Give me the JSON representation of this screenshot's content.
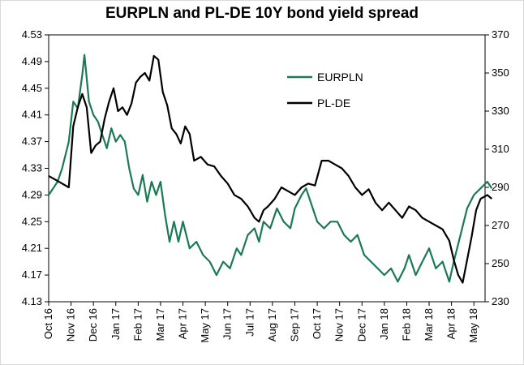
{
  "chart_data": {
    "type": "line",
    "title": "EURPLN and PL-DE 10Y bond yield spread",
    "x_categories": [
      "Oct 16",
      "Nov 16",
      "Dec 16",
      "Jan 17",
      "Feb 17",
      "Mar 17",
      "Apr 17",
      "May 17",
      "Jun 17",
      "Jul 17",
      "Aug 17",
      "Sep 17",
      "Oct 17",
      "Nov 17",
      "Dec 17",
      "Jan 18",
      "Feb 18",
      "Mar 18",
      "Apr 18",
      "May 18"
    ],
    "y_left": {
      "min": 4.13,
      "max": 4.53,
      "ticks": [
        "4.13",
        "4.17",
        "4.21",
        "4.25",
        "4.29",
        "4.33",
        "4.37",
        "4.41",
        "4.45",
        "4.49",
        "4.53"
      ]
    },
    "y_right": {
      "min": 230,
      "max": 370,
      "ticks": [
        "230",
        "250",
        "270",
        "290",
        "310",
        "330",
        "350",
        "370"
      ]
    },
    "legend": {
      "position": "upper-middle"
    },
    "series": [
      {
        "name": "EURPLN",
        "axis": "left",
        "color": "#1a7a55",
        "points": [
          [
            "Oct 16",
            4.29
          ],
          [
            0.4,
            4.31
          ],
          [
            0.6,
            4.33
          ],
          [
            0.9,
            4.37
          ],
          [
            1.0,
            4.4
          ],
          [
            1.1,
            4.43
          ],
          [
            1.3,
            4.42
          ],
          [
            1.5,
            4.47
          ],
          [
            1.6,
            4.5
          ],
          [
            1.8,
            4.43
          ],
          [
            2.0,
            4.41
          ],
          [
            2.2,
            4.4
          ],
          [
            2.4,
            4.38
          ],
          [
            2.6,
            4.36
          ],
          [
            2.8,
            4.39
          ],
          [
            3.0,
            4.37
          ],
          [
            3.2,
            4.38
          ],
          [
            3.4,
            4.37
          ],
          [
            3.6,
            4.33
          ],
          [
            3.8,
            4.3
          ],
          [
            4.0,
            4.29
          ],
          [
            4.2,
            4.32
          ],
          [
            4.4,
            4.28
          ],
          [
            4.6,
            4.31
          ],
          [
            4.8,
            4.29
          ],
          [
            5.0,
            4.31
          ],
          [
            5.2,
            4.26
          ],
          [
            5.4,
            4.22
          ],
          [
            5.6,
            4.25
          ],
          [
            5.8,
            4.22
          ],
          [
            6.0,
            4.25
          ],
          [
            6.3,
            4.21
          ],
          [
            6.6,
            4.22
          ],
          [
            6.9,
            4.2
          ],
          [
            7.2,
            4.19
          ],
          [
            7.5,
            4.17
          ],
          [
            7.8,
            4.19
          ],
          [
            8.1,
            4.18
          ],
          [
            8.4,
            4.21
          ],
          [
            8.6,
            4.2
          ],
          [
            8.9,
            4.23
          ],
          [
            9.2,
            4.24
          ],
          [
            9.4,
            4.22
          ],
          [
            9.6,
            4.25
          ],
          [
            9.9,
            4.24
          ],
          [
            10.2,
            4.27
          ],
          [
            10.5,
            4.25
          ],
          [
            10.8,
            4.24
          ],
          [
            11.0,
            4.27
          ],
          [
            11.3,
            4.29
          ],
          [
            11.5,
            4.3
          ],
          [
            11.8,
            4.27
          ],
          [
            12.0,
            4.25
          ],
          [
            12.3,
            4.24
          ],
          [
            12.6,
            4.25
          ],
          [
            12.9,
            4.25
          ],
          [
            13.2,
            4.23
          ],
          [
            13.5,
            4.22
          ],
          [
            13.8,
            4.23
          ],
          [
            14.1,
            4.2
          ],
          [
            14.4,
            4.19
          ],
          [
            14.7,
            4.18
          ],
          [
            15.0,
            4.17
          ],
          [
            15.3,
            4.18
          ],
          [
            15.6,
            4.16
          ],
          [
            15.9,
            4.18
          ],
          [
            16.1,
            4.2
          ],
          [
            16.4,
            4.17
          ],
          [
            16.7,
            4.19
          ],
          [
            17.0,
            4.21
          ],
          [
            17.3,
            4.18
          ],
          [
            17.6,
            4.19
          ],
          [
            17.9,
            4.16
          ],
          [
            18.1,
            4.19
          ],
          [
            18.4,
            4.23
          ],
          [
            18.7,
            4.27
          ],
          [
            19.0,
            4.29
          ],
          [
            19.3,
            4.3
          ],
          [
            19.6,
            4.31
          ],
          [
            19.8,
            4.3
          ]
        ]
      },
      {
        "name": "PL-DE",
        "axis": "right",
        "color": "#000000",
        "points": [
          [
            0.0,
            296
          ],
          [
            0.3,
            294
          ],
          [
            0.6,
            292
          ],
          [
            0.9,
            290
          ],
          [
            1.1,
            322
          ],
          [
            1.3,
            332
          ],
          [
            1.5,
            339
          ],
          [
            1.7,
            332
          ],
          [
            1.9,
            308
          ],
          [
            2.1,
            312
          ],
          [
            2.3,
            314
          ],
          [
            2.5,
            326
          ],
          [
            2.7,
            335
          ],
          [
            2.9,
            342
          ],
          [
            3.1,
            330
          ],
          [
            3.3,
            332
          ],
          [
            3.5,
            328
          ],
          [
            3.7,
            334
          ],
          [
            3.9,
            345
          ],
          [
            4.1,
            348
          ],
          [
            4.3,
            350
          ],
          [
            4.5,
            346
          ],
          [
            4.7,
            359
          ],
          [
            4.9,
            357
          ],
          [
            5.1,
            340
          ],
          [
            5.3,
            333
          ],
          [
            5.5,
            321
          ],
          [
            5.7,
            318
          ],
          [
            5.9,
            313
          ],
          [
            6.1,
            322
          ],
          [
            6.3,
            318
          ],
          [
            6.5,
            304
          ],
          [
            6.8,
            306
          ],
          [
            7.1,
            302
          ],
          [
            7.4,
            301
          ],
          [
            7.7,
            296
          ],
          [
            8.0,
            292
          ],
          [
            8.3,
            286
          ],
          [
            8.6,
            284
          ],
          [
            8.9,
            280
          ],
          [
            9.2,
            274
          ],
          [
            9.4,
            272
          ],
          [
            9.6,
            278
          ],
          [
            9.8,
            280
          ],
          [
            10.1,
            284
          ],
          [
            10.4,
            290
          ],
          [
            10.7,
            288
          ],
          [
            11.0,
            286
          ],
          [
            11.3,
            290
          ],
          [
            11.6,
            292
          ],
          [
            11.9,
            291
          ],
          [
            12.2,
            304
          ],
          [
            12.5,
            304
          ],
          [
            12.8,
            302
          ],
          [
            13.1,
            300
          ],
          [
            13.4,
            296
          ],
          [
            13.7,
            290
          ],
          [
            14.0,
            286
          ],
          [
            14.3,
            289
          ],
          [
            14.6,
            282
          ],
          [
            14.9,
            278
          ],
          [
            15.2,
            282
          ],
          [
            15.5,
            278
          ],
          [
            15.8,
            274
          ],
          [
            16.1,
            280
          ],
          [
            16.4,
            278
          ],
          [
            16.7,
            274
          ],
          [
            17.0,
            272
          ],
          [
            17.3,
            270
          ],
          [
            17.6,
            268
          ],
          [
            17.9,
            262
          ],
          [
            18.1,
            252
          ],
          [
            18.3,
            244
          ],
          [
            18.5,
            240
          ],
          [
            18.7,
            252
          ],
          [
            18.9,
            264
          ],
          [
            19.1,
            278
          ],
          [
            19.3,
            284
          ],
          [
            19.6,
            286
          ],
          [
            19.8,
            284
          ]
        ]
      }
    ]
  }
}
